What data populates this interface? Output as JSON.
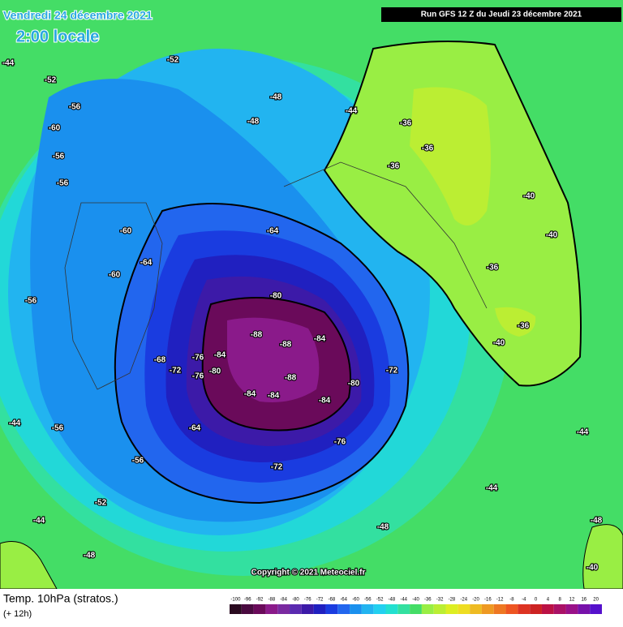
{
  "header": {
    "date": "Vendredi 24 décembre 2021",
    "time": "2:00 locale",
    "run": "Run GFS 12 Z du Jeudi 23 décembre 2021"
  },
  "copyright": "Copyright © 2021 Meteociel.fr",
  "footer": {
    "title": "Temp. 10hPa (stratos.)",
    "subtitle": "(+ 12h)"
  },
  "scale": {
    "values": [
      -100,
      -96,
      -92,
      -88,
      -84,
      -80,
      -76,
      -72,
      -68,
      -64,
      -60,
      -56,
      -52,
      -48,
      -44,
      -40,
      -36,
      -32,
      -28,
      -24,
      -20,
      -16,
      -12,
      -8,
      -4,
      0,
      4,
      8,
      12,
      16,
      20
    ],
    "colors": [
      "#2a0a20",
      "#4a0a40",
      "#6a0a5a",
      "#8a1a8a",
      "#7a2aa0",
      "#5a2ab0",
      "#3c1aa8",
      "#2020c0",
      "#1a3ce0",
      "#2266ee",
      "#1a90ee",
      "#22b4f0",
      "#22d0f0",
      "#22e0d0",
      "#33e0a0",
      "#44dd66",
      "#99ee44",
      "#bbee33",
      "#ddee22",
      "#eedd22",
      "#eebb22",
      "#ee9922",
      "#ee7722",
      "#ee5522",
      "#dd3322",
      "#cc2222",
      "#bb1144",
      "#aa1166",
      "#991188",
      "#7711aa",
      "#5511cc"
    ]
  },
  "map_labels": [
    -60,
    -56,
    -56,
    -56,
    -52,
    -52,
    -48,
    -48,
    -44,
    -44,
    -36,
    -36,
    -36,
    -40,
    -40,
    -36,
    -40,
    -36,
    -64,
    -80,
    -88,
    -88,
    -88,
    -84,
    -84,
    -80,
    -84,
    -84,
    -84,
    -80,
    -72,
    -76,
    -76,
    -72,
    -68,
    -64,
    -76,
    -72,
    -56,
    -52,
    -48,
    -44,
    -44,
    -56,
    -60,
    -64,
    -60,
    -56,
    -48,
    -44,
    -48,
    -40,
    -44
  ]
}
